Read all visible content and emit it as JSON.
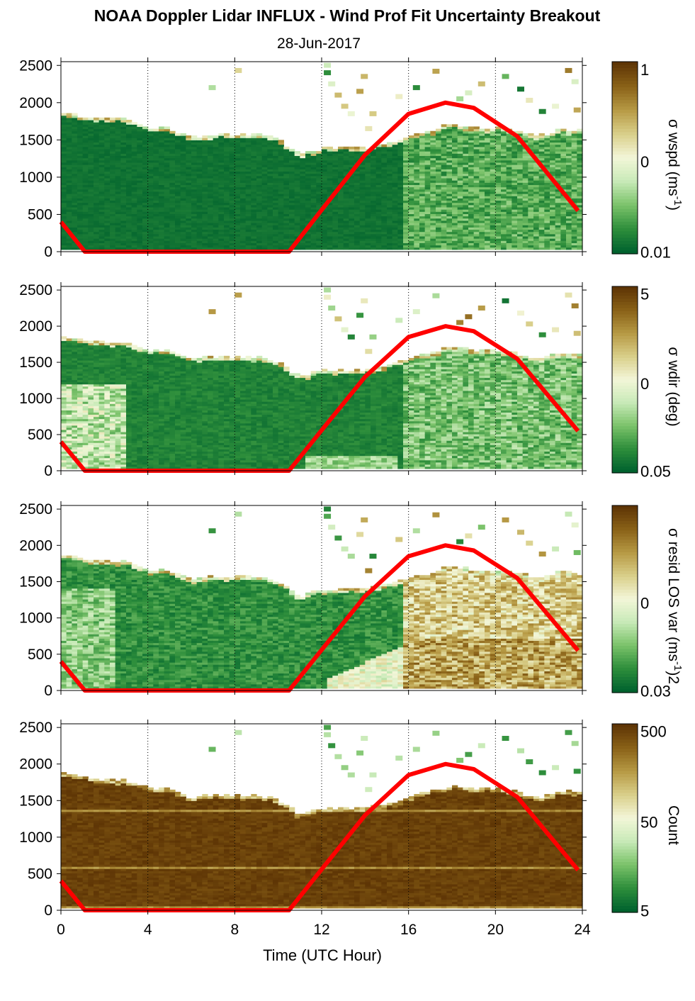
{
  "title": "NOAA Doppler Lidar INFLUX - Wind Prof Fit Uncertainty Breakout",
  "subtitle": "28-Jun-2017",
  "colors": {
    "sun_curve": "#ff0000",
    "colormap": [
      "#00622e",
      "#2f8f3c",
      "#7cc36b",
      "#c8eab8",
      "#f3f6d8",
      "#d9cf8a",
      "#b79a45",
      "#8a6218",
      "#5e3505"
    ]
  },
  "chart_data": [
    {
      "type": "heatmap",
      "xlabel": "",
      "ylabel": "",
      "xlim": [
        0,
        24
      ],
      "ylim": [
        0,
        2550
      ],
      "x_ticks": [
        0,
        4,
        8,
        12,
        16,
        20,
        24
      ],
      "y_ticks": [
        "0",
        "500",
        "1000",
        "1500",
        "2000",
        "2500"
      ],
      "vertical_gridlines_x": [
        4,
        8,
        12,
        16,
        20,
        24
      ],
      "colorbar": {
        "label": "σ wspd (ms-1)",
        "label_parts": [
          "σ wspd (ms",
          "-1",
          ")"
        ],
        "ticks": [
          "1",
          "0",
          "0.01"
        ],
        "scale": "log"
      }
    },
    {
      "type": "heatmap",
      "xlabel": "",
      "ylabel": "",
      "xlim": [
        0,
        24
      ],
      "ylim": [
        0,
        2550
      ],
      "x_ticks": [
        0,
        4,
        8,
        12,
        16,
        20,
        24
      ],
      "y_ticks": [
        "0",
        "500",
        "1000",
        "1500",
        "2000",
        "2500"
      ],
      "vertical_gridlines_x": [
        4,
        8,
        12,
        16,
        20,
        24
      ],
      "colorbar": {
        "label": "σ wdir (deg)",
        "label_parts": [
          "σ wdir (deg)",
          "",
          ""
        ],
        "ticks": [
          "5",
          "0",
          "0.05"
        ],
        "scale": "log"
      }
    },
    {
      "type": "heatmap",
      "xlabel": "",
      "ylabel": "",
      "xlim": [
        0,
        24
      ],
      "ylim": [
        0,
        2550
      ],
      "x_ticks": [
        0,
        4,
        8,
        12,
        16,
        20,
        24
      ],
      "y_ticks": [
        "0",
        "500",
        "1000",
        "1500",
        "2000",
        "2500"
      ],
      "vertical_gridlines_x": [
        4,
        8,
        12,
        16,
        20,
        24
      ],
      "colorbar": {
        "label": "σ resid LOS var (ms-1)2",
        "label_parts": [
          "σ resid LOS var (ms",
          "-1",
          ")2"
        ],
        "ticks": [
          "0",
          "0.03"
        ],
        "scale": "log"
      }
    },
    {
      "type": "heatmap",
      "xlabel": "Time (UTC Hour)",
      "ylabel": "",
      "xlim": [
        0,
        24
      ],
      "ylim": [
        0,
        2550
      ],
      "x_ticks": [
        0,
        4,
        8,
        12,
        16,
        20,
        24
      ],
      "x_tick_labels": [
        "0",
        "4",
        "8",
        "12",
        "16",
        "20",
        "24"
      ],
      "y_ticks": [
        "0",
        "500",
        "1000",
        "1500",
        "2000",
        "2500"
      ],
      "vertical_gridlines_x": [
        4,
        8,
        12,
        16,
        20,
        24
      ],
      "colorbar": {
        "label": "Count",
        "label_parts": [
          "Count",
          "",
          ""
        ],
        "ticks": [
          "500",
          "50",
          "5"
        ],
        "scale": "log"
      }
    }
  ],
  "sun_elevation_curve": {
    "description_units": "UTC hour vs height axis (m) scaled",
    "points": [
      [
        0,
        400
      ],
      [
        1.1,
        0
      ],
      [
        10.5,
        0
      ],
      [
        12,
        560
      ],
      [
        14,
        1300
      ],
      [
        16,
        1850
      ],
      [
        17.7,
        2000
      ],
      [
        19,
        1930
      ],
      [
        21,
        1550
      ],
      [
        23.8,
        550
      ]
    ]
  },
  "boundary_layer_top": {
    "x": [
      0,
      1,
      2,
      3,
      4,
      5,
      6,
      7,
      8,
      9,
      10,
      11,
      12,
      13,
      14,
      15,
      16,
      17,
      18,
      19,
      20,
      21,
      22,
      23,
      23.8
    ],
    "top": [
      1850,
      1800,
      1770,
      1760,
      1650,
      1640,
      1520,
      1560,
      1550,
      1560,
      1500,
      1280,
      1370,
      1380,
      1380,
      1430,
      1530,
      1600,
      1700,
      1640,
      1650,
      1600,
      1530,
      1620,
      1600
    ]
  }
}
